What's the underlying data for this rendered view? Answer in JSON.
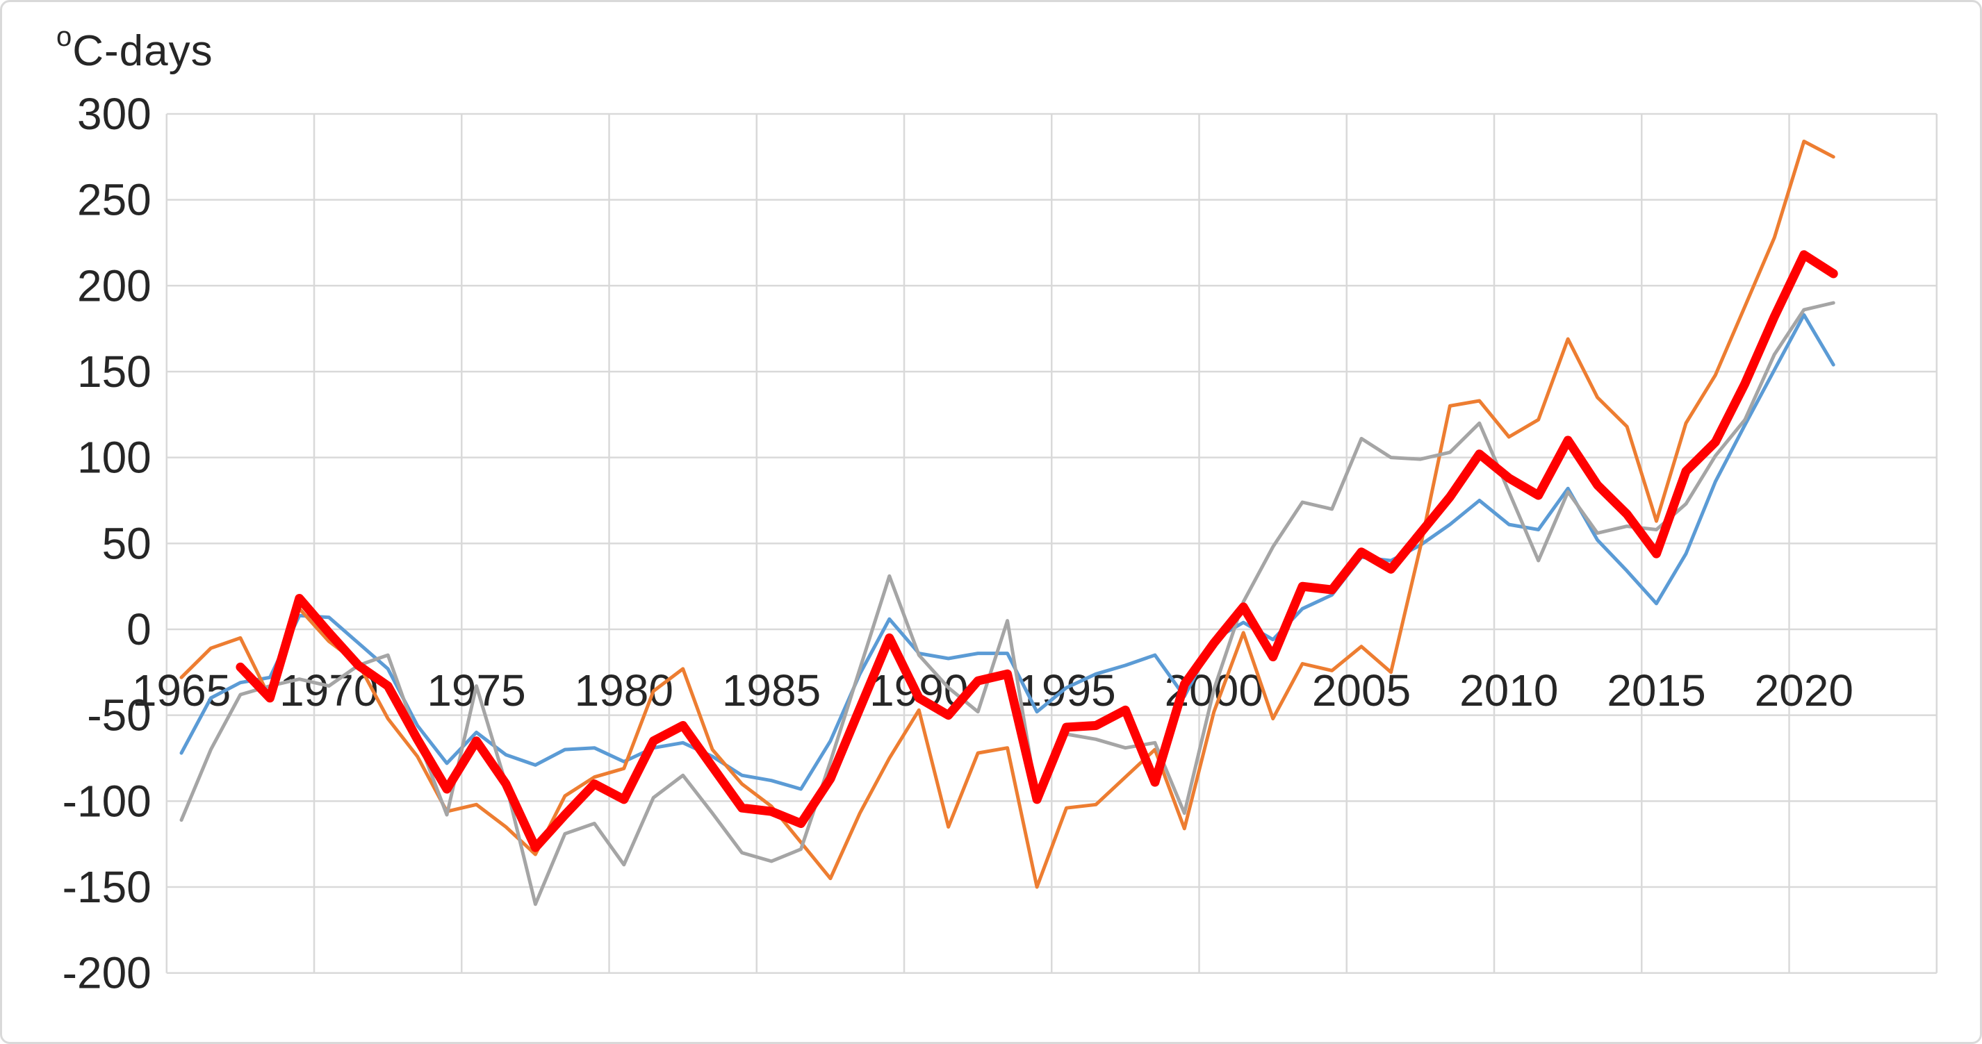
{
  "chart_data": {
    "type": "line",
    "title": "",
    "xlabel": "",
    "ylabel": "°C-days",
    "ylabel_base": "C-days",
    "ylabel_superscript": "o",
    "x": [
      1965,
      1966,
      1967,
      1968,
      1969,
      1970,
      1971,
      1972,
      1973,
      1974,
      1975,
      1976,
      1977,
      1978,
      1979,
      1980,
      1981,
      1982,
      1983,
      1984,
      1985,
      1986,
      1987,
      1988,
      1989,
      1990,
      1991,
      1992,
      1993,
      1994,
      1995,
      1996,
      1997,
      1998,
      1999,
      2000,
      2001,
      2002,
      2003,
      2004,
      2005,
      2006,
      2007,
      2008,
      2009,
      2010,
      2011,
      2012,
      2013,
      2014,
      2015,
      2016,
      2017,
      2018,
      2019,
      2020,
      2021
    ],
    "x_tick_labels": [
      "1965",
      "1970",
      "1975",
      "1980",
      "1985",
      "1990",
      "1995",
      "2000",
      "2005",
      "2010",
      "2015",
      "2020"
    ],
    "x_ticks": [
      1965,
      1970,
      1975,
      1980,
      1985,
      1990,
      1995,
      2000,
      2005,
      2010,
      2015,
      2020
    ],
    "y_ticks": [
      300,
      250,
      200,
      150,
      100,
      50,
      0,
      -50,
      -100,
      -150,
      -200
    ],
    "y_tick_labels": [
      "300",
      "250",
      "200",
      "150",
      "100",
      "50",
      "0",
      "-50",
      "-100",
      "-150",
      "-200"
    ],
    "ylim": [
      -200,
      300
    ],
    "xlim": [
      1964.5,
      2024.5
    ],
    "grid": true,
    "gridline_color": "#d9d9d9",
    "legend": null,
    "axis_label_color": "#262626",
    "series": [
      {
        "name": "blue",
        "color": "#5B9BD5",
        "stroke_width": 5,
        "values": [
          -72,
          -40,
          -31,
          -28,
          8,
          7,
          -8,
          -23,
          -56,
          -78,
          -60,
          -73,
          -79,
          -70,
          -69,
          -77,
          -69,
          -66,
          -74,
          -85,
          -88,
          -93,
          -65,
          -26,
          6,
          -14,
          -17,
          -14,
          -14,
          -48,
          -34,
          -26,
          -21,
          -15,
          -39,
          -6,
          4,
          -6,
          12,
          20,
          42,
          40,
          49,
          61,
          75,
          61,
          58,
          82,
          52,
          34,
          15,
          44,
          86,
          119,
          151,
          183,
          154
        ]
      },
      {
        "name": "orange",
        "color": "#ED7D31",
        "stroke_width": 5,
        "values": [
          -28,
          -11,
          -5,
          -40,
          12,
          -7,
          -20,
          -52,
          -74,
          -106,
          -102,
          -115,
          -131,
          -97,
          -86,
          -81,
          -36,
          -23,
          -70,
          -90,
          -103,
          -124,
          -145,
          -107,
          -75,
          -47,
          -115,
          -72,
          -69,
          -150,
          -104,
          -102,
          -86,
          -70,
          -116,
          -48,
          -2,
          -52,
          -20,
          -24,
          -10,
          -25,
          48,
          130,
          133,
          112,
          122,
          169,
          135,
          118,
          63,
          120,
          148,
          188,
          228,
          284,
          275
        ]
      },
      {
        "name": "gray",
        "color": "#A5A5A5",
        "stroke_width": 5,
        "values": [
          -111,
          -70,
          -38,
          -33,
          -29,
          -33,
          -21,
          -15,
          -63,
          -108,
          -33,
          -90,
          -160,
          -119,
          -113,
          -137,
          -98,
          -85,
          -107,
          -130,
          -135,
          -128,
          -77,
          -23,
          31,
          -15,
          -34,
          -48,
          5,
          -98,
          -61,
          -64,
          -69,
          -66,
          -107,
          -35,
          16,
          48,
          74,
          70,
          111,
          100,
          99,
          103,
          120,
          80,
          40,
          80,
          56,
          60,
          58,
          73,
          101,
          122,
          160,
          186,
          190
        ]
      },
      {
        "name": "red-bold",
        "color": "#FF0000",
        "stroke_width": 13,
        "values": [
          null,
          null,
          -22,
          -40,
          18,
          -2,
          -21,
          -33,
          -64,
          -93,
          -65,
          -90,
          -127,
          -108,
          -90,
          -99,
          -65,
          -56,
          -80,
          -104,
          -106,
          -113,
          -87,
          -46,
          -5,
          -40,
          -50,
          -30,
          -26,
          -99,
          -57,
          -56,
          -47,
          -89,
          -32,
          -8,
          13,
          -16,
          25,
          23,
          45,
          35,
          56,
          77,
          102,
          88,
          78,
          110,
          84,
          67,
          44,
          92,
          109,
          143,
          182,
          218,
          207
        ]
      }
    ]
  }
}
